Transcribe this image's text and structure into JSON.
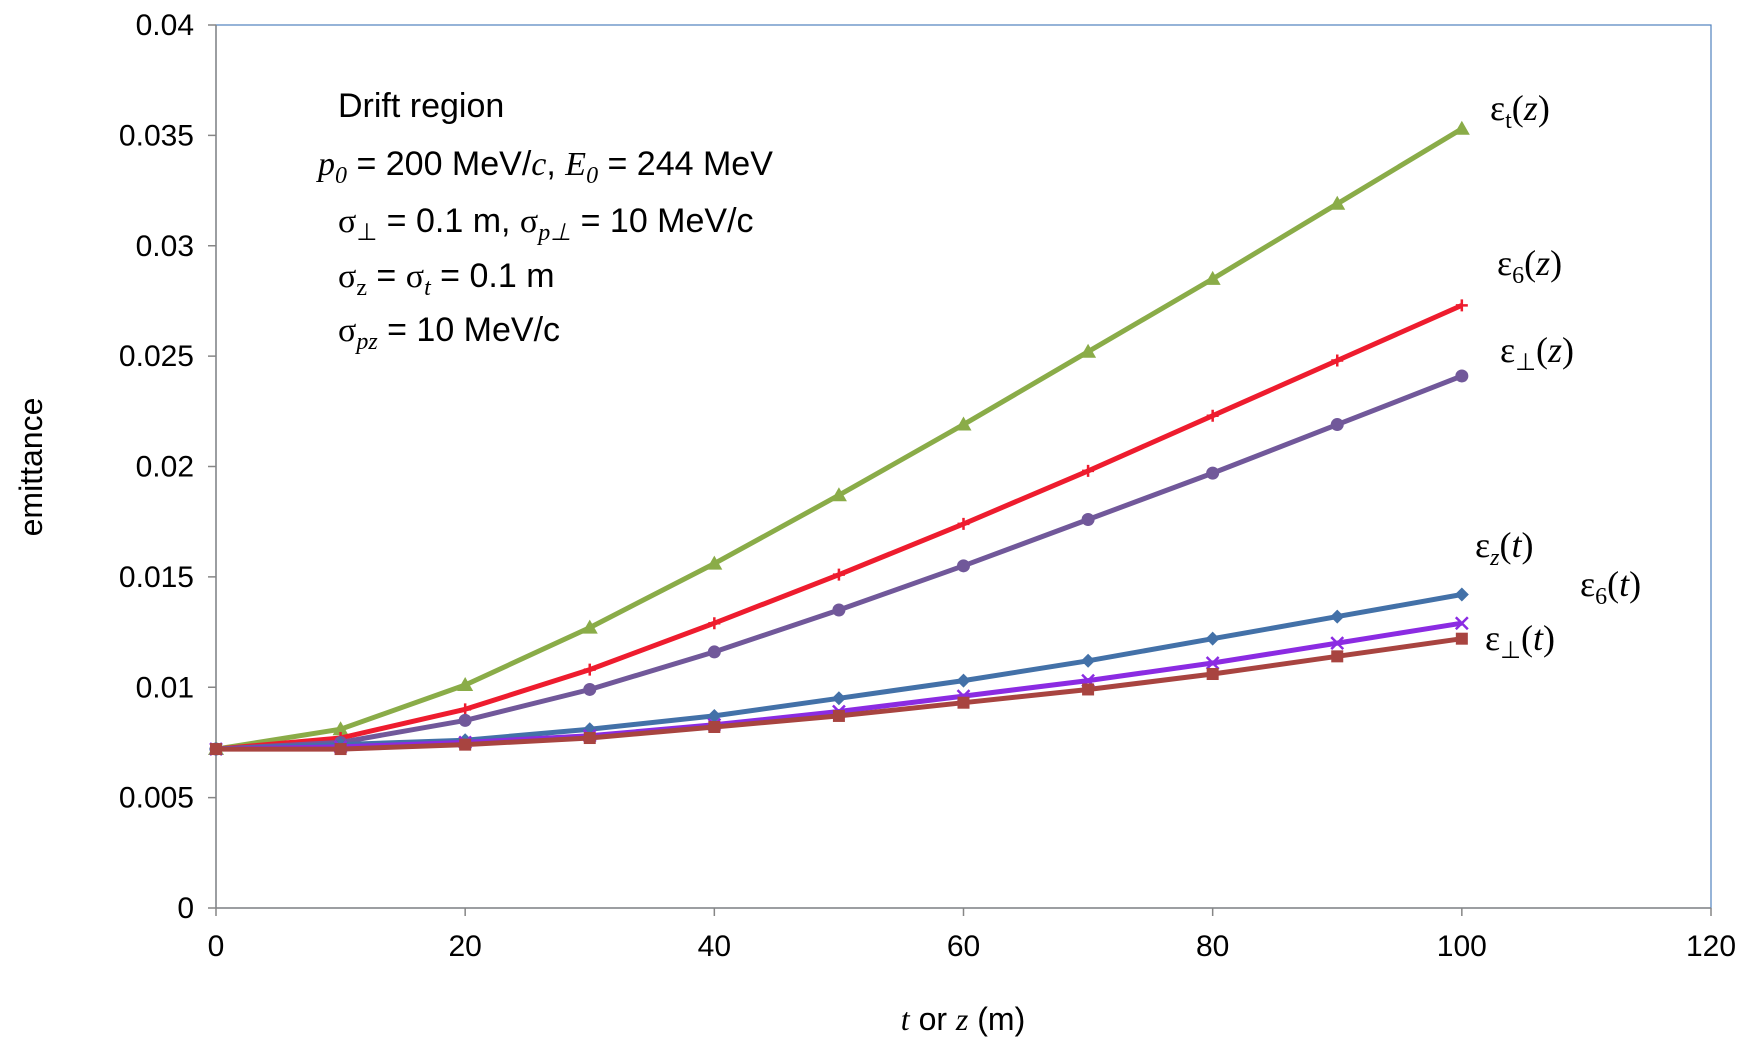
{
  "chart_data": {
    "type": "line",
    "xlabel": {
      "italic1": "t",
      "mid": " or ",
      "italic2": "z",
      "tail": " (m)"
    },
    "ylabel": "emittance",
    "xlim": [
      0,
      120
    ],
    "ylim": [
      0,
      0.04
    ],
    "xticks": [
      "0",
      "20",
      "40",
      "60",
      "80",
      "100",
      "120"
    ],
    "yticks": [
      "0",
      "0.005",
      "0.01",
      "0.015",
      "0.02",
      "0.025",
      "0.03",
      "0.035",
      "0.04"
    ],
    "grid": false,
    "annotation": {
      "line1": "Drift region",
      "line2": {
        "p": "p",
        "p_sub": "0",
        "p_rest": " = 200 MeV/",
        "c": "c",
        "comma": ", ",
        "E": "E",
        "E_sub": "0",
        "E_rest": " = 244 MeV"
      },
      "line3": {
        "s1": "σ",
        "s1_sub": "⊥",
        "s1_rest": " = 0.1 m, ",
        "s2": "σ",
        "s2_sub": "p⊥",
        "s2_rest": " = 10 MeV/c"
      },
      "line4": {
        "s1": "σ",
        "s1_sub": "z",
        "eq": " = ",
        "s2": "σ",
        "s2_sub": "t",
        "rest": " = 0.1 m"
      },
      "line5": {
        "s": "σ",
        "s_sub": "pz",
        "rest": " = 10 MeV/c"
      }
    },
    "series_labels": {
      "eps_t_z": {
        "eps": "ε",
        "sub": "t",
        "open": "(",
        "var": "z",
        "close": ")"
      },
      "eps_6_z": {
        "eps": "ε",
        "sub": "6",
        "open": "(",
        "var": "z",
        "close": ")"
      },
      "eps_perp_z": {
        "eps": "ε",
        "sub": "⊥",
        "open": "(",
        "var": "z",
        "close": ")"
      },
      "eps_z_t": {
        "eps": "ε",
        "sub": "z",
        "open": "(",
        "var": "t",
        "close": ")"
      },
      "eps_6_t": {
        "eps": "ε",
        "sub": "6",
        "open": "(",
        "var": "t",
        "close": ")"
      },
      "eps_perp_t": {
        "eps": "ε",
        "sub": "⊥",
        "open": "(",
        "var": "t",
        "close": ")"
      }
    },
    "x": [
      0,
      10,
      20,
      30,
      40,
      50,
      60,
      70,
      80,
      90,
      100
    ],
    "series": [
      {
        "id": "eps_t_z",
        "color": "#8aac48",
        "marker": "triangle",
        "values": [
          0.0072,
          0.0081,
          0.0101,
          0.0127,
          0.0156,
          0.0187,
          0.0219,
          0.0252,
          0.0285,
          0.0319,
          0.0353
        ]
      },
      {
        "id": "eps_6_z",
        "color": "#ee1c2e",
        "marker": "plus",
        "values": [
          0.0072,
          0.0077,
          0.009,
          0.0108,
          0.0129,
          0.0151,
          0.0174,
          0.0198,
          0.0223,
          0.0248,
          0.0273
        ]
      },
      {
        "id": "eps_perp_z",
        "color": "#71589a",
        "marker": "circle",
        "values": [
          0.0072,
          0.0075,
          0.0085,
          0.0099,
          0.0116,
          0.0135,
          0.0155,
          0.0176,
          0.0197,
          0.0219,
          0.0241
        ]
      },
      {
        "id": "eps_z_t",
        "color": "#4371a8",
        "marker": "diamond",
        "values": [
          0.0072,
          0.0074,
          0.0076,
          0.0081,
          0.0087,
          0.0095,
          0.0103,
          0.0112,
          0.0122,
          0.0132,
          0.0142
        ]
      },
      {
        "id": "eps_6_t",
        "color": "#8b2be2",
        "marker": "x",
        "values": [
          0.0072,
          0.0073,
          0.0075,
          0.0078,
          0.0083,
          0.0089,
          0.0096,
          0.0103,
          0.0111,
          0.012,
          0.0129
        ]
      },
      {
        "id": "eps_perp_t",
        "color": "#a84440",
        "marker": "square",
        "values": [
          0.0072,
          0.0072,
          0.0074,
          0.0077,
          0.0082,
          0.0087,
          0.0093,
          0.0099,
          0.0106,
          0.0114,
          0.0122
        ]
      }
    ]
  }
}
